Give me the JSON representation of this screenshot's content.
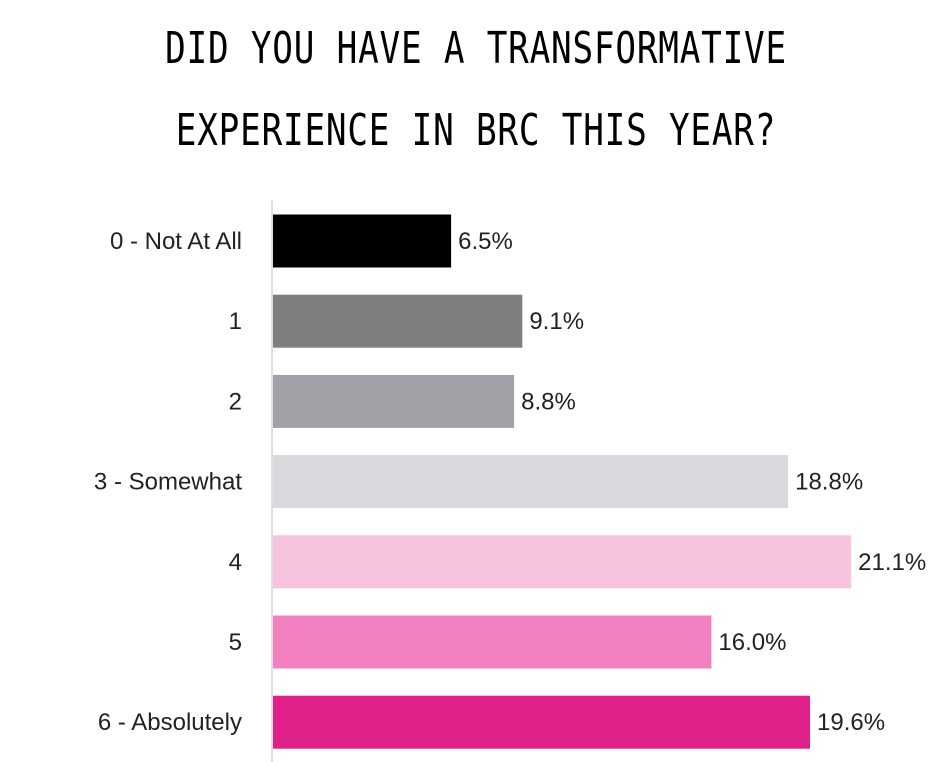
{
  "chart_data": {
    "type": "bar",
    "orientation": "horizontal",
    "title_lines": [
      "Did You Have a Transformative",
      "Experience in BRC This Year?"
    ],
    "categories": [
      "0 - Not At All",
      "1",
      "2",
      "3 - Somewhat",
      "4",
      "5",
      "6 - Absolutely"
    ],
    "values": [
      6.5,
      9.1,
      8.8,
      18.8,
      21.1,
      16.0,
      19.6
    ],
    "value_labels": [
      "6.5%",
      "9.1%",
      "8.8%",
      "18.8%",
      "21.1%",
      "16.0%",
      "19.6%"
    ],
    "colors": [
      "#000000",
      "#7f7f7f",
      "#a0a2a8",
      "#d8d9dc",
      "#f8c3df",
      "#f280c1",
      "#e0218a"
    ],
    "value_unit": "%",
    "xlim": [
      0,
      21.1
    ],
    "grid": false,
    "legend": "none"
  }
}
